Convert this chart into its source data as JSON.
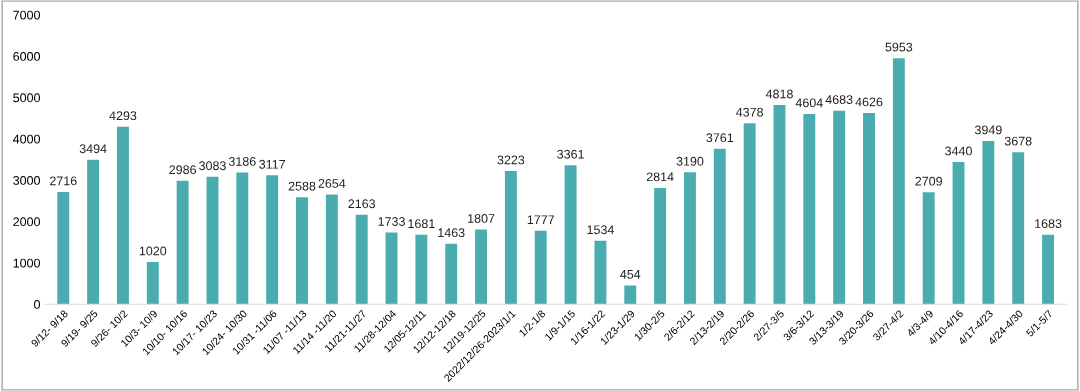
{
  "chart_data": {
    "type": "bar",
    "categories": [
      "9/12- 9/18",
      "9/19- 9/25",
      "9/26- 10/2",
      "10/3- 10/9",
      "10/10- 10/16",
      "10/17- 10/23",
      "10/24- 10/30",
      "10/31 -11/06",
      "11/07 -11/13",
      "11/14 -11/20",
      "11/21-11/27",
      "11/28-12/04",
      "12/05-12/11",
      "12/12-12/18",
      "12/19-12/25",
      "2022/12/26-2023/1/1",
      "1/2-1/8",
      "1/9-1/15",
      "1/16-1/22",
      "1/23-1/29",
      "1/30-2/5",
      "2/6-2/12",
      "2/13-2/19",
      "2/20-2/26",
      "2/27-3/5",
      "3/6-3/12",
      "3/13-3/19",
      "3/20-3/26",
      "3/27-4/2",
      "4/3-4/9",
      "4/10-4/16",
      "4/17-4/23",
      "4/24-4/30",
      "5/1-5/7"
    ],
    "values": [
      2716,
      3494,
      4293,
      1020,
      2986,
      3083,
      3186,
      3117,
      2588,
      2654,
      2163,
      1733,
      1681,
      1463,
      1807,
      3223,
      1777,
      3361,
      1534,
      454,
      2814,
      3190,
      3761,
      4378,
      4818,
      4604,
      4683,
      4626,
      5953,
      2709,
      3440,
      3949,
      3678,
      1683
    ],
    "color": "#4bacb0",
    "ylim": [
      0,
      7000
    ],
    "yticks": [
      0,
      1000,
      2000,
      3000,
      4000,
      5000,
      6000,
      7000
    ],
    "data_labels": true,
    "grid": false,
    "legend": false
  }
}
